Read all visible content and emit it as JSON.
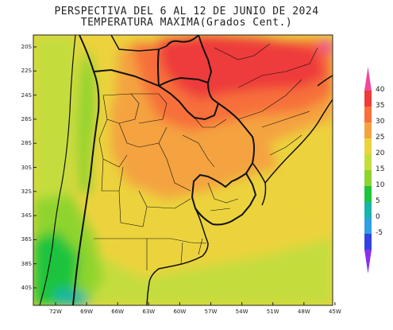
{
  "title_line1": "PERSPECTIVA DEL 6 AL 12 DE JUNIO DE 2024",
  "title_line2": "TEMPERATURA MAXIMA(Grados Cent.)",
  "lat_labels": [
    "20S",
    "22S",
    "24S",
    "26S",
    "28S",
    "30S",
    "32S",
    "34S",
    "36S",
    "38S",
    "40S"
  ],
  "lon_labels": [
    "72W",
    "69W",
    "66W",
    "63W",
    "60W",
    "57W",
    "54W",
    "51W",
    "48W",
    "45W"
  ],
  "colorbar": {
    "ticks": [
      "40",
      "35",
      "30",
      "25",
      "20",
      "15",
      "10",
      "5",
      "0",
      "-5"
    ],
    "colors": [
      "#f0489b",
      "#ee3b3b",
      "#f7703b",
      "#f4a341",
      "#ecd33d",
      "#c4dd3c",
      "#8fd42f",
      "#1ec43c",
      "#19b5a8",
      "#2f9fe6",
      "#3443e0",
      "#8b2ff0"
    ]
  }
}
